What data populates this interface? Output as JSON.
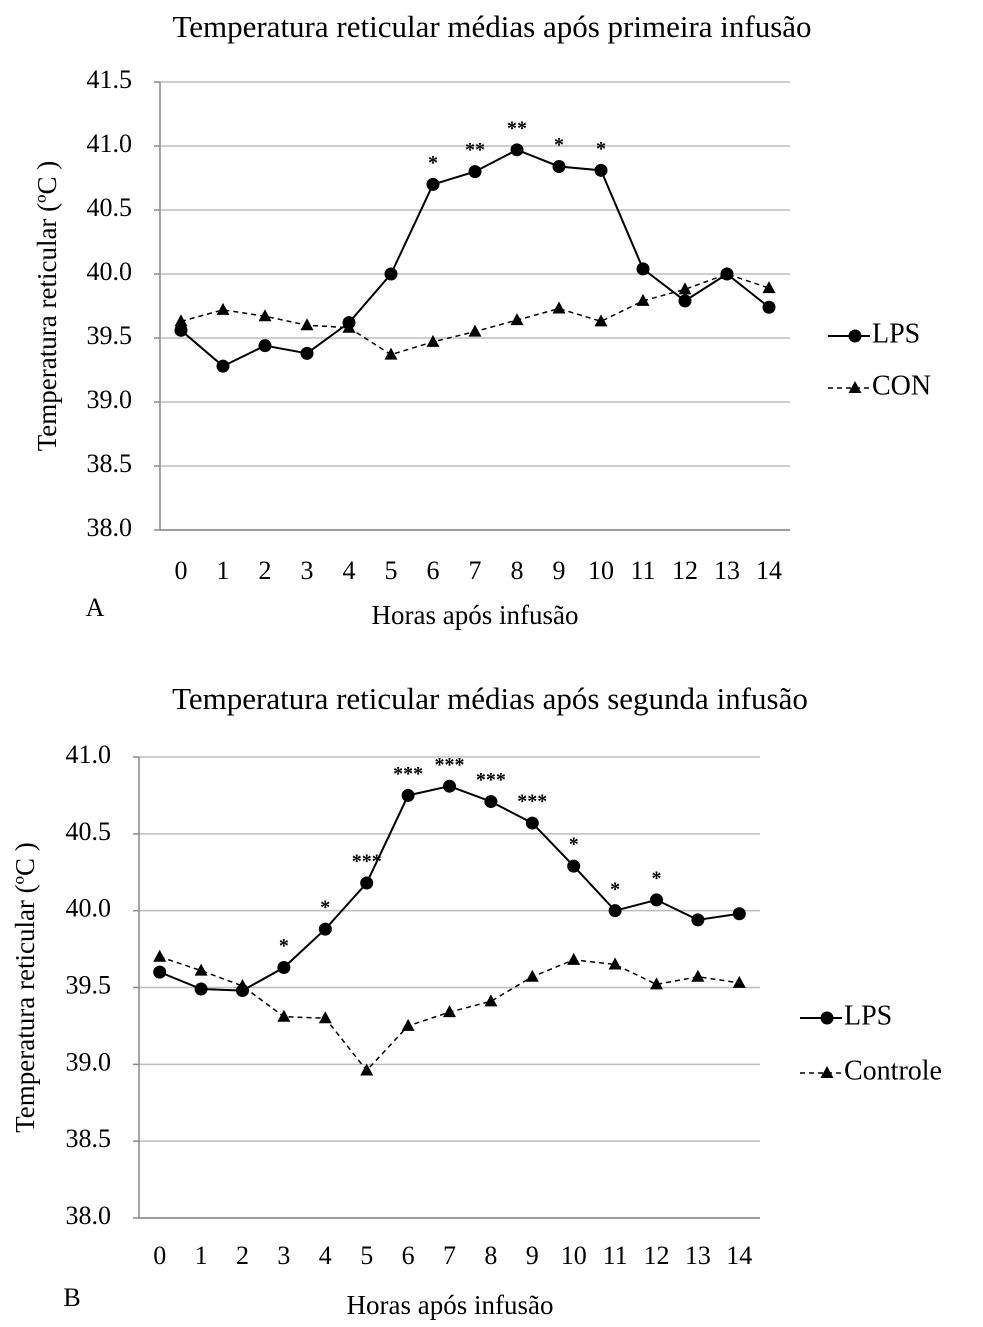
{
  "chart_data": [
    {
      "type": "line",
      "title": "Temperatura reticular médias após primeira infusão",
      "panel_label": "A",
      "x_label": "Horas após infusão",
      "y_label": "Temperatura reticular (ºC )",
      "categories": [
        "0",
        "1",
        "2",
        "3",
        "4",
        "5",
        "6",
        "7",
        "8",
        "9",
        "10",
        "11",
        "12",
        "13",
        "14"
      ],
      "ylim": [
        38,
        41.5
      ],
      "yticks": [
        {
          "value": 38,
          "label": "38.0"
        },
        38.5,
        {
          "value": 39,
          "label": "39.0"
        },
        39.5,
        {
          "value": 40,
          "label": "40.0"
        },
        40.5,
        {
          "value": 41,
          "label": "41.0"
        },
        41.5
      ],
      "grid": true,
      "series": [
        {
          "name": "LPS",
          "color": "#000000",
          "line_style": "solid",
          "marker": "circle",
          "values": [
            39.56,
            39.28,
            39.44,
            39.38,
            39.62,
            40.0,
            40.7,
            40.8,
            40.97,
            40.84,
            40.81,
            40.04,
            39.79,
            40.0,
            39.74
          ],
          "annotations": [
            null,
            null,
            null,
            null,
            null,
            null,
            "*",
            "**",
            "**",
            "*",
            "*",
            null,
            null,
            null,
            null
          ]
        },
        {
          "name": "CON",
          "color": "#000000",
          "line_style": "dashed",
          "marker": "triangle",
          "values": [
            39.63,
            39.72,
            39.67,
            39.6,
            39.58,
            39.37,
            39.47,
            39.55,
            39.64,
            39.73,
            39.63,
            39.79,
            39.88,
            40.0,
            39.89
          ]
        }
      ]
    },
    {
      "type": "line",
      "title": "Temperatura reticular médias após segunda infusão",
      "panel_label": "B",
      "x_label": "Horas após infusão",
      "y_label": "Temperatura reticular (ºC )",
      "categories": [
        "0",
        "1",
        "2",
        "3",
        "4",
        "5",
        "6",
        "7",
        "8",
        "9",
        "10",
        "11",
        "12",
        "13",
        "14"
      ],
      "ylim": [
        38,
        41
      ],
      "yticks": [
        {
          "value": 38,
          "label": "38.0"
        },
        38.5,
        {
          "value": 39,
          "label": "39.0"
        },
        39.5,
        {
          "value": 40,
          "label": "40.0"
        },
        40.5,
        {
          "value": 41,
          "label": "41.0"
        }
      ],
      "grid": true,
      "series": [
        {
          "name": "LPS",
          "color": "#000000",
          "line_style": "solid",
          "marker": "circle",
          "values": [
            39.6,
            39.49,
            39.48,
            39.63,
            39.88,
            40.18,
            40.75,
            40.81,
            40.71,
            40.57,
            40.29,
            40.0,
            40.07,
            39.94,
            39.98
          ],
          "annotations": [
            null,
            null,
            null,
            "*",
            "*",
            "***",
            "***",
            "***",
            "***",
            "***",
            "*",
            "*",
            "*",
            null,
            null
          ]
        },
        {
          "name": "Controle",
          "color": "#000000",
          "line_style": "dashed",
          "marker": "triangle",
          "values": [
            39.7,
            39.61,
            39.51,
            39.31,
            39.3,
            38.96,
            39.25,
            39.34,
            39.41,
            39.57,
            39.68,
            39.65,
            39.52,
            39.57,
            39.53
          ]
        }
      ]
    }
  ]
}
